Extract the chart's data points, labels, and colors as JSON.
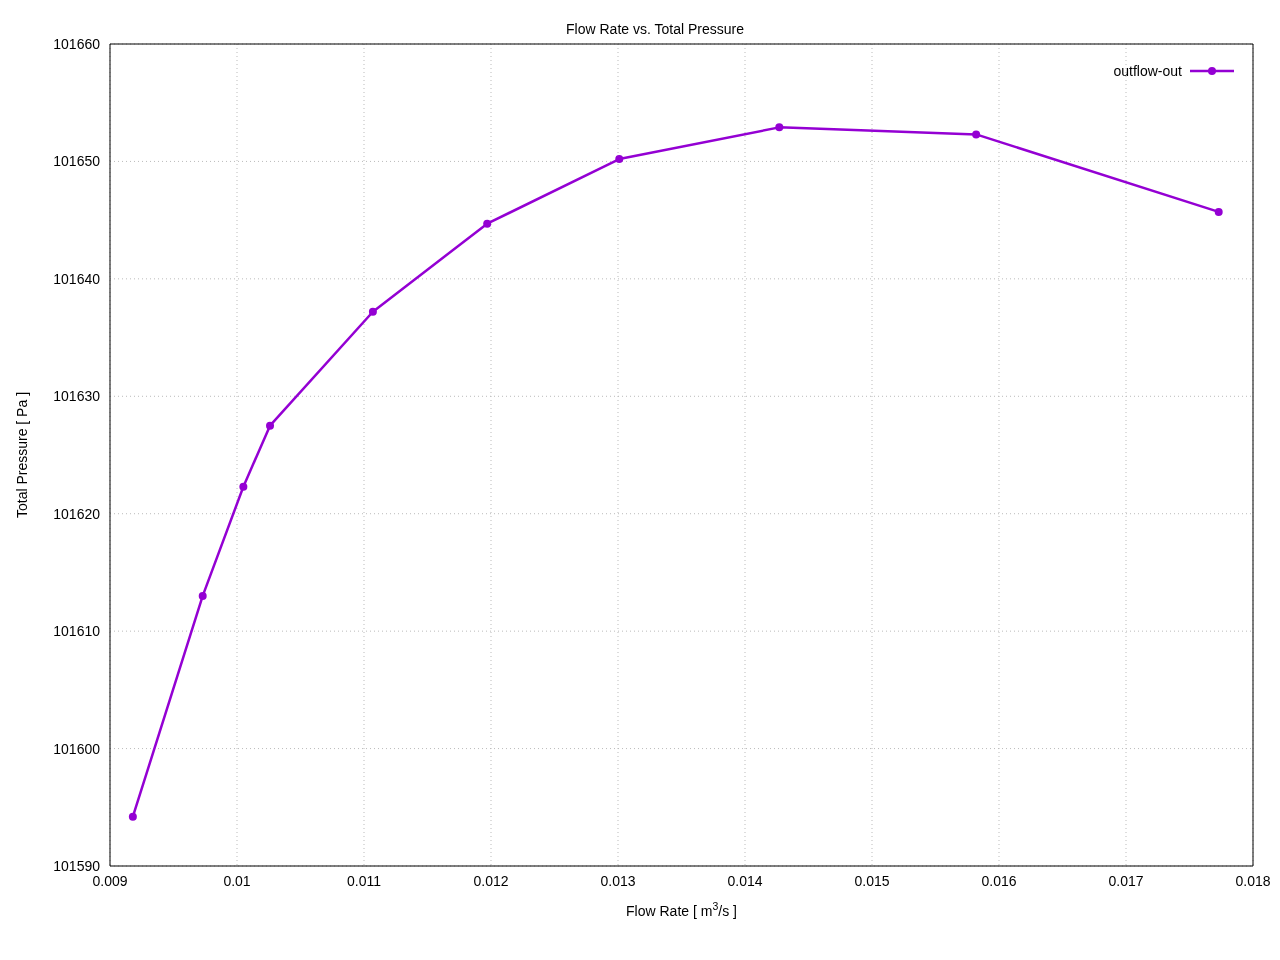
{
  "chart_data": {
    "type": "line",
    "title": "Flow Rate vs. Total Pressure",
    "xlabel": "Flow Rate [ m$^{3}$/s ]",
    "ylabel": "Total Pressure [ Pa ]",
    "x": [
      0.00918,
      0.00973,
      0.01005,
      0.01026,
      0.01107,
      0.01197,
      0.01301,
      0.01427,
      0.01582,
      0.01773
    ],
    "series": [
      {
        "name": "outflow-out",
        "color": "#9400d3",
        "values": [
          101594.2,
          101613.0,
          101622.3,
          101627.5,
          101637.2,
          101644.7,
          101650.2,
          101652.9,
          101652.3,
          101645.7
        ]
      }
    ],
    "xlim": [
      0.009,
      0.018
    ],
    "xticks": [
      0.009,
      0.01,
      0.011,
      0.012,
      0.013,
      0.014,
      0.015,
      0.016,
      0.017,
      0.018
    ],
    "ylim": [
      101590,
      101660
    ],
    "yticks": [
      101590,
      101600,
      101610,
      101620,
      101630,
      101640,
      101650,
      101660
    ],
    "grid": true,
    "legend": "top right",
    "marker": "circle",
    "line_style": "solid"
  }
}
